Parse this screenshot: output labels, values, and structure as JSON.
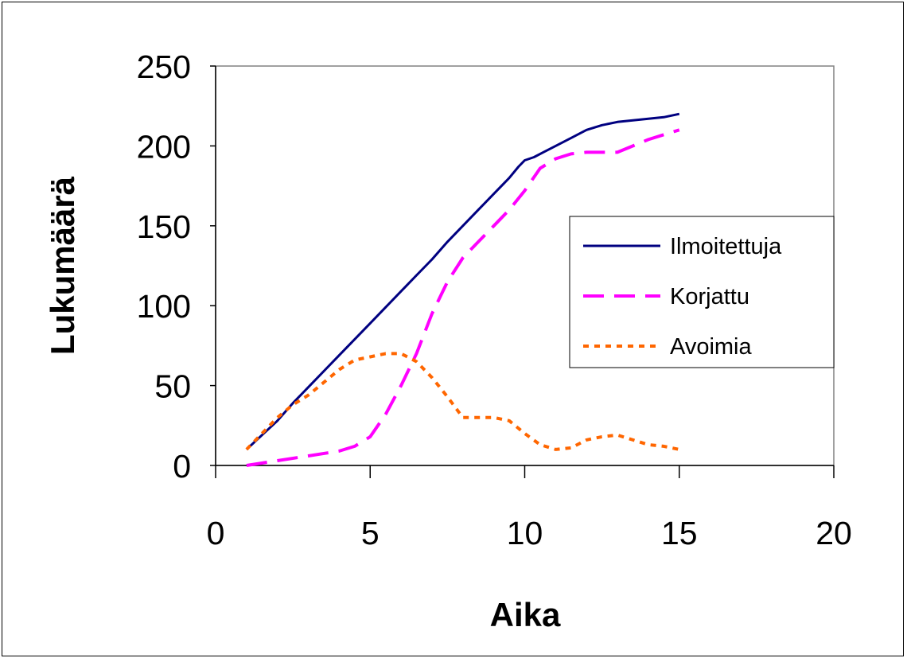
{
  "chart_data": {
    "type": "line",
    "title": "",
    "xlabel": "Aika",
    "ylabel": "Lukumäärä",
    "xlim": [
      0,
      20
    ],
    "ylim": [
      0,
      250
    ],
    "xticks": [
      0,
      5,
      10,
      15,
      20
    ],
    "yticks": [
      0,
      50,
      100,
      150,
      200,
      250
    ],
    "grid": false,
    "legend_position": "right",
    "series": [
      {
        "name": "Ilmoitettuja",
        "color": "#000080",
        "style": "solid",
        "x": [
          1,
          1.5,
          2,
          2.5,
          3,
          3.5,
          4,
          4.5,
          5,
          5.5,
          6,
          6.5,
          7,
          7.5,
          8,
          8.5,
          9,
          9.5,
          9.8,
          10,
          10.3,
          10.6,
          11,
          11.5,
          12,
          12.5,
          13,
          13.5,
          14,
          14.5,
          15
        ],
        "y": [
          10,
          19,
          28,
          39,
          49,
          59,
          69,
          79,
          89,
          99,
          109,
          119,
          129,
          140,
          150,
          160,
          170,
          180,
          187,
          191,
          193,
          196,
          200,
          205,
          210,
          213,
          215,
          216,
          217,
          218,
          220
        ]
      },
      {
        "name": "Korjattu",
        "color": "#ff00ff",
        "style": "dashed",
        "x": [
          1,
          2,
          3,
          4,
          4.5,
          5,
          5.5,
          6,
          6.5,
          7,
          7.5,
          8,
          8.5,
          9,
          9.5,
          10,
          10.5,
          11,
          11.5,
          12,
          12.5,
          13,
          13.5,
          14,
          14.5,
          15
        ],
        "y": [
          0,
          3,
          6,
          9,
          12,
          18,
          32,
          50,
          70,
          95,
          115,
          130,
          140,
          150,
          160,
          172,
          186,
          192,
          195,
          196,
          196,
          196,
          200,
          204,
          207,
          210
        ]
      },
      {
        "name": "Avoimia",
        "color": "#ff6600",
        "style": "dotted",
        "x": [
          1,
          1.5,
          2,
          2.5,
          3,
          3.5,
          4,
          4.5,
          5,
          5.5,
          6,
          6.5,
          7,
          7.5,
          8,
          8.5,
          9,
          9.5,
          10,
          10.5,
          11,
          11.5,
          12,
          12.5,
          13,
          13.5,
          14,
          14.5,
          15
        ],
        "y": [
          10,
          20,
          30,
          38,
          44,
          52,
          60,
          66,
          68,
          70,
          70,
          65,
          55,
          43,
          30,
          30,
          30,
          28,
          20,
          13,
          10,
          11,
          16,
          18,
          19,
          16,
          13,
          12,
          10
        ]
      }
    ]
  }
}
